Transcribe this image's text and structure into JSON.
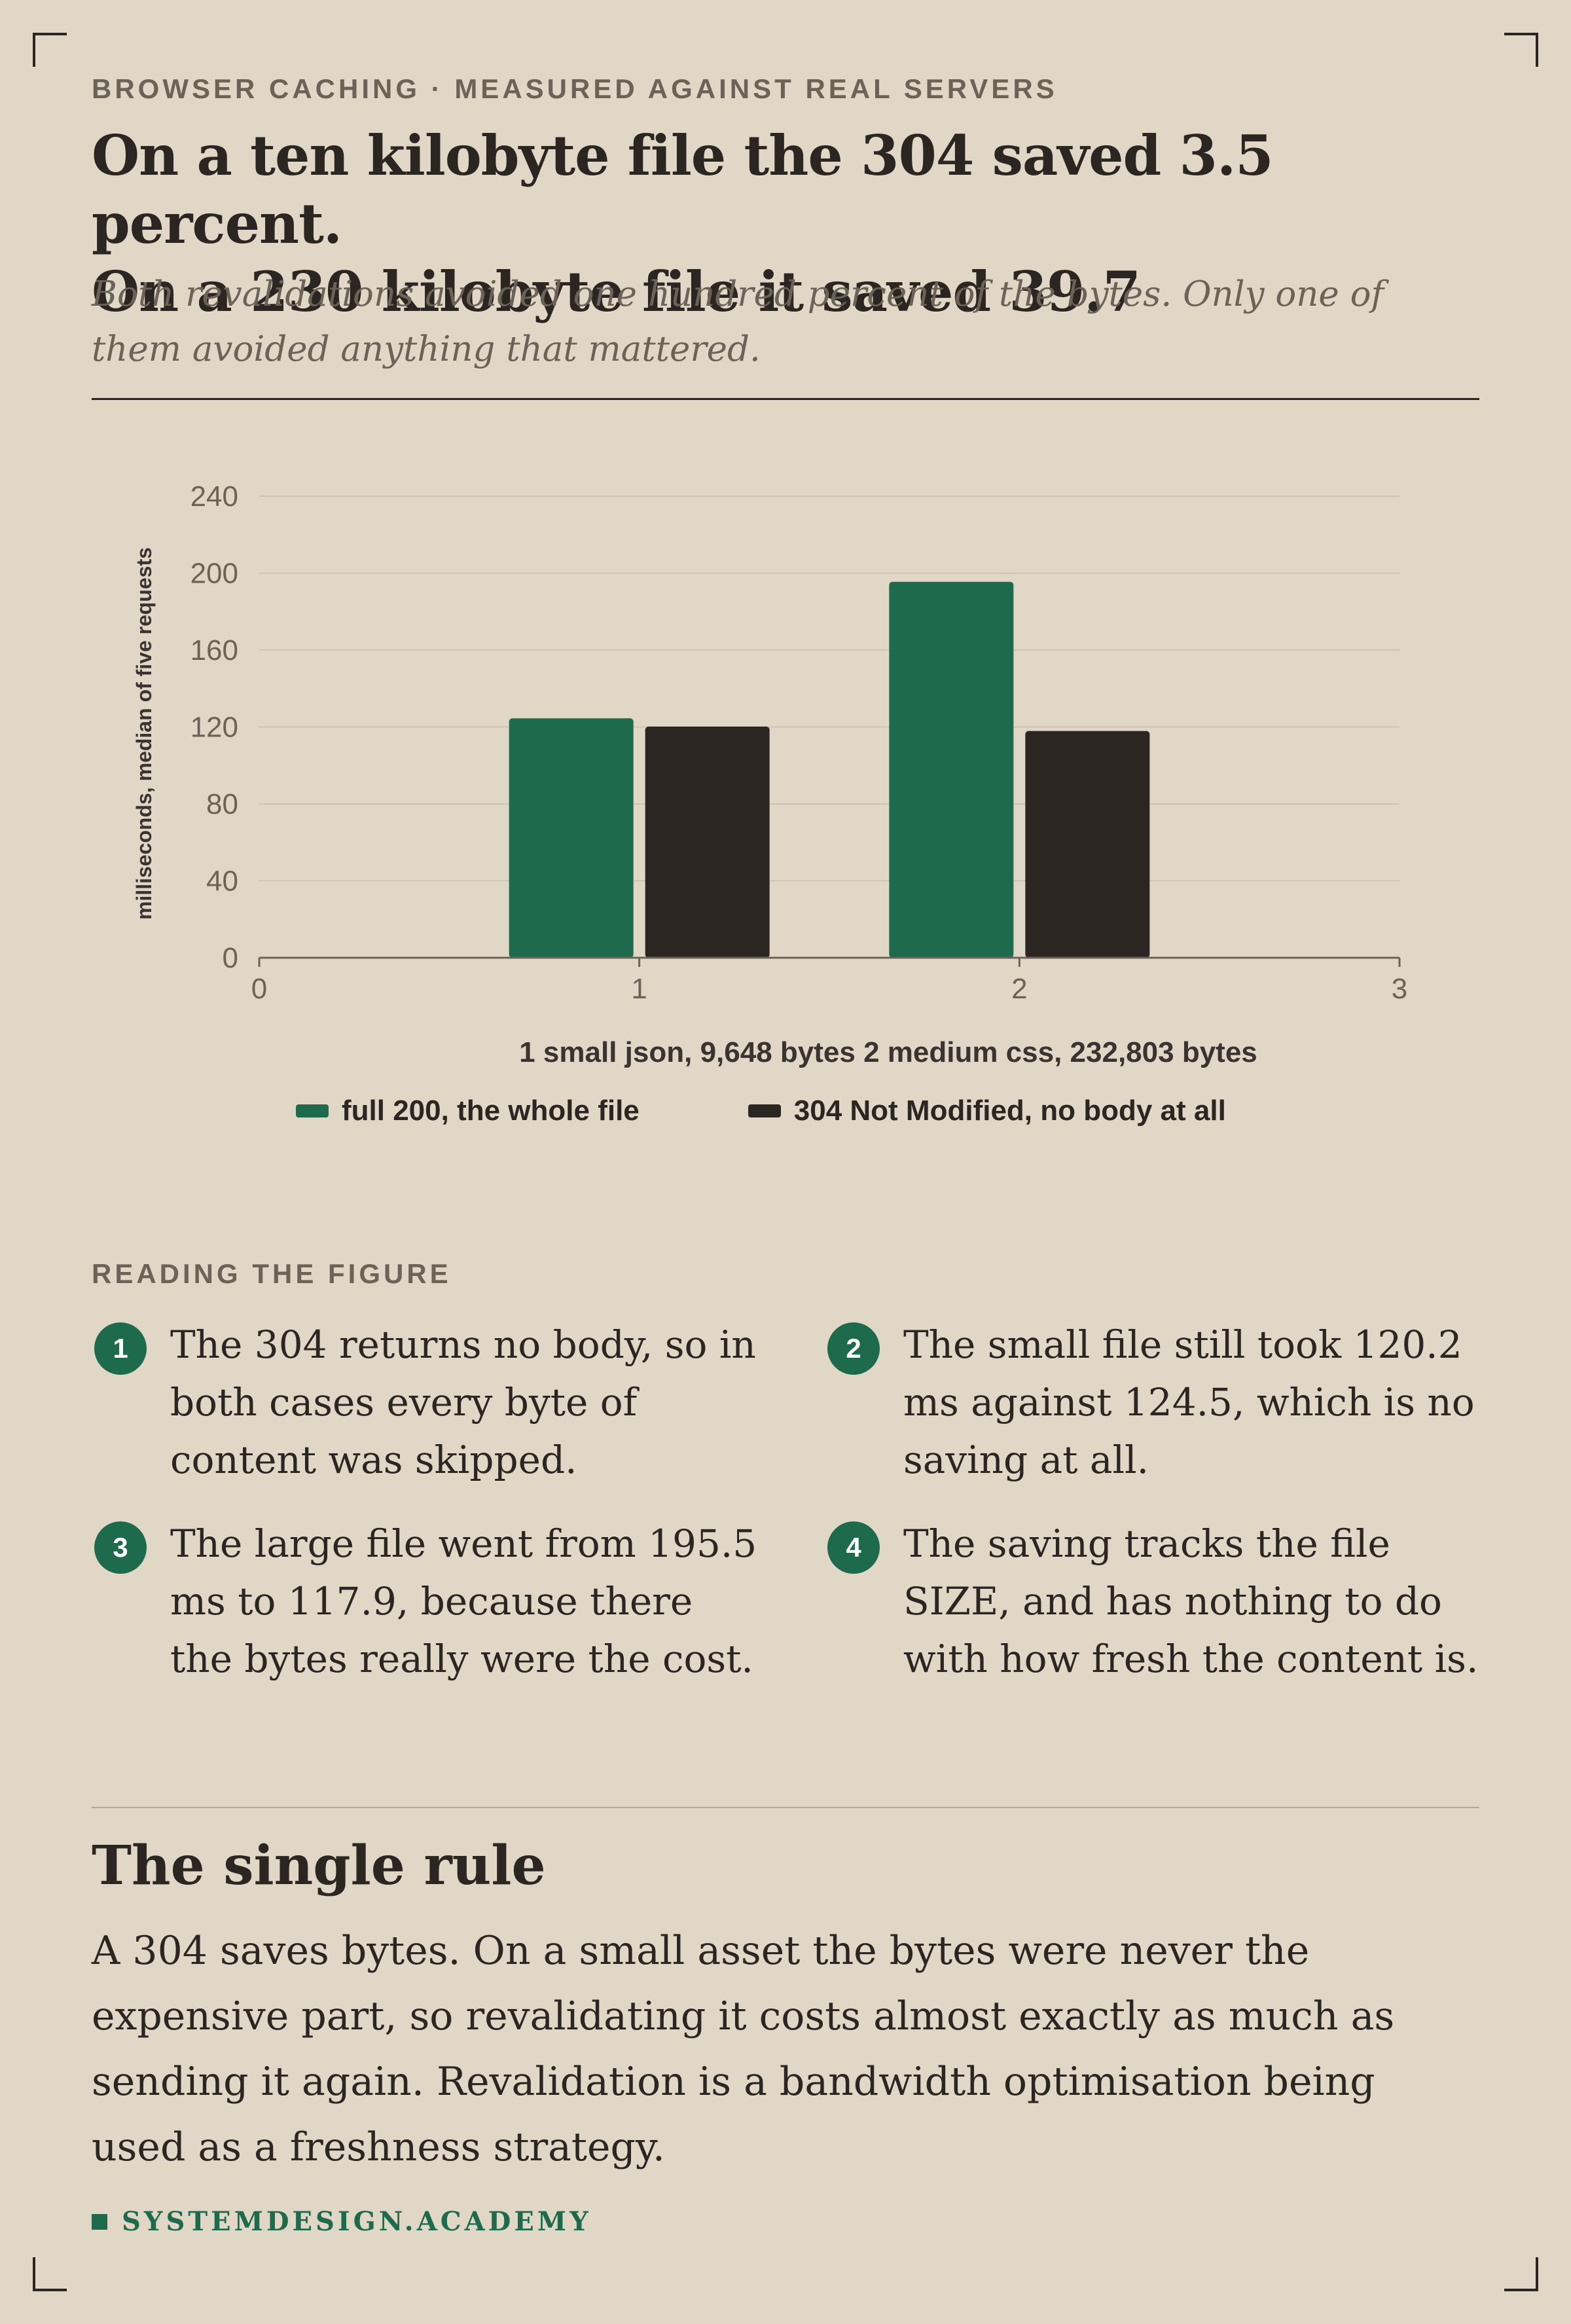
{
  "kicker": "BROWSER CACHING · MEASURED AGAINST REAL SERVERS",
  "headline_line1": "On a ten kilobyte file the 304 saved 3.5 percent.",
  "headline_line2": "On a 230 kilobyte file it saved 39.7",
  "subtitle": "Both revalidations avoided one hundred percent of the bytes. Only one of them avoided anything that mattered.",
  "colors": {
    "background": "#e0d7c7",
    "accent_green": "#1e6a4c",
    "ink": "#2b2622",
    "muted": "#6b6358"
  },
  "chart_data": {
    "type": "bar",
    "title": "",
    "xlabel": "1 small json, 9,648 bytes 2 medium css, 232,803 bytes",
    "ylabel": "milliseconds, median of five requests",
    "x": [
      1,
      2
    ],
    "xlim": [
      0,
      3
    ],
    "xticks": [
      "0",
      "1",
      "2",
      "3"
    ],
    "ylim": [
      0,
      240
    ],
    "yticks": [
      "0",
      "40",
      "80",
      "120",
      "160",
      "200",
      "240"
    ],
    "grid": true,
    "legend_position": "bottom",
    "series": [
      {
        "name": "full 200, the whole file",
        "color": "#1e6a4c",
        "values": [
          124.5,
          195.5
        ]
      },
      {
        "name": "304 Not Modified, no body at all",
        "color": "#2b2622",
        "values": [
          120.2,
          117.9
        ]
      }
    ]
  },
  "reading": {
    "label": "READING THE FIGURE",
    "items": [
      {
        "num": "1",
        "text": "The 304 returns no body, so in both cases every byte of content was skipped."
      },
      {
        "num": "2",
        "text": "The small file still took 120.2 ms against 124.5, which is no saving at all."
      },
      {
        "num": "3",
        "text": "The large file went from 195.5 ms to 117.9, because there the bytes really were the cost."
      },
      {
        "num": "4",
        "text": "The saving tracks the file SIZE, and has nothing to do with how fresh the content is."
      }
    ]
  },
  "rule": {
    "title": "The single rule",
    "body": "A 304 saves bytes. On a small asset the bytes were never the expensive part, so revalidating it costs almost exactly as much as sending it again. Revalidation is a bandwidth optimisation being used as a freshness strategy."
  },
  "brand": "SYSTEMDESIGN.ACADEMY"
}
